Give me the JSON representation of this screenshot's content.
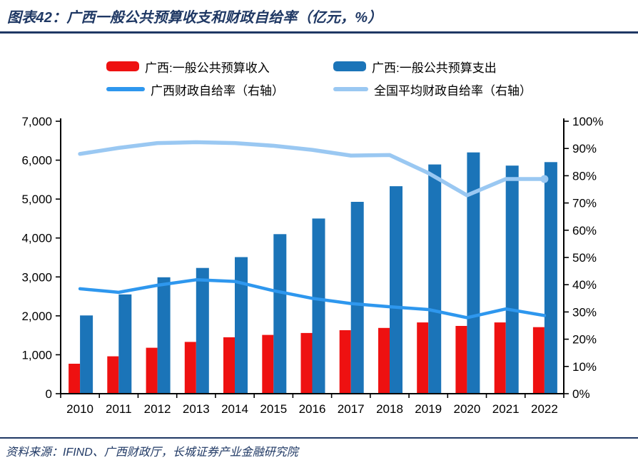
{
  "header": {
    "title": "图表42：广西一般公共预算收支和财政自给率（亿元，%）"
  },
  "footer": {
    "source": "资料来源：IFIND、广西财政厅，长城证券产业金融研究院"
  },
  "colors": {
    "accent_navy": "#1F3864",
    "axis_black": "#000000",
    "revenue_red": "#EE1111",
    "expenditure_blue": "#1B74B8",
    "guangxi_rate_blue": "#2E97EE",
    "national_rate_lightblue": "#9AC8F2",
    "background": "#FFFFFF"
  },
  "chart_data": {
    "type": "bar+line",
    "title": "广西一般公共预算收支和财政自给率",
    "units": "亿元，%",
    "legend_position": "top",
    "grid": false,
    "categories": [
      "2010",
      "2011",
      "2012",
      "2013",
      "2014",
      "2015",
      "2016",
      "2017",
      "2018",
      "2019",
      "2020",
      "2021",
      "2022"
    ],
    "series": [
      {
        "name": "广西:一般公共预算收入",
        "type": "bar",
        "axis": "left",
        "color": "#EE1111",
        "values": [
          770,
          960,
          1180,
          1330,
          1450,
          1510,
          1560,
          1630,
          1690,
          1830,
          1740,
          1830,
          1710
        ]
      },
      {
        "name": "广西:一般公共预算支出",
        "type": "bar",
        "axis": "left",
        "color": "#1B74B8",
        "values": [
          2010,
          2550,
          2990,
          3230,
          3510,
          4100,
          4500,
          4930,
          5330,
          5890,
          6200,
          5860,
          5950
        ]
      },
      {
        "name": "广西财政自给率（右轴）",
        "type": "line",
        "axis": "right",
        "color": "#2E97EE",
        "end_dot": false,
        "values": [
          38.5,
          37.2,
          39.8,
          41.8,
          41.2,
          37.8,
          35.0,
          33.1,
          31.9,
          30.9,
          27.9,
          31.1,
          28.7
        ]
      },
      {
        "name": "全国平均财政自给率（右轴）",
        "type": "line",
        "axis": "right",
        "color": "#9AC8F2",
        "end_dot": true,
        "values": [
          88.0,
          90.2,
          92.0,
          92.3,
          92.0,
          91.0,
          89.5,
          87.4,
          87.6,
          81.0,
          72.8,
          78.8,
          78.8
        ]
      }
    ],
    "left_axis": {
      "min": 0,
      "max": 7000,
      "step": 1000,
      "tick_format": "thousands-comma"
    },
    "right_axis": {
      "min": 0,
      "max": 100,
      "step": 10,
      "suffix": "%"
    }
  }
}
